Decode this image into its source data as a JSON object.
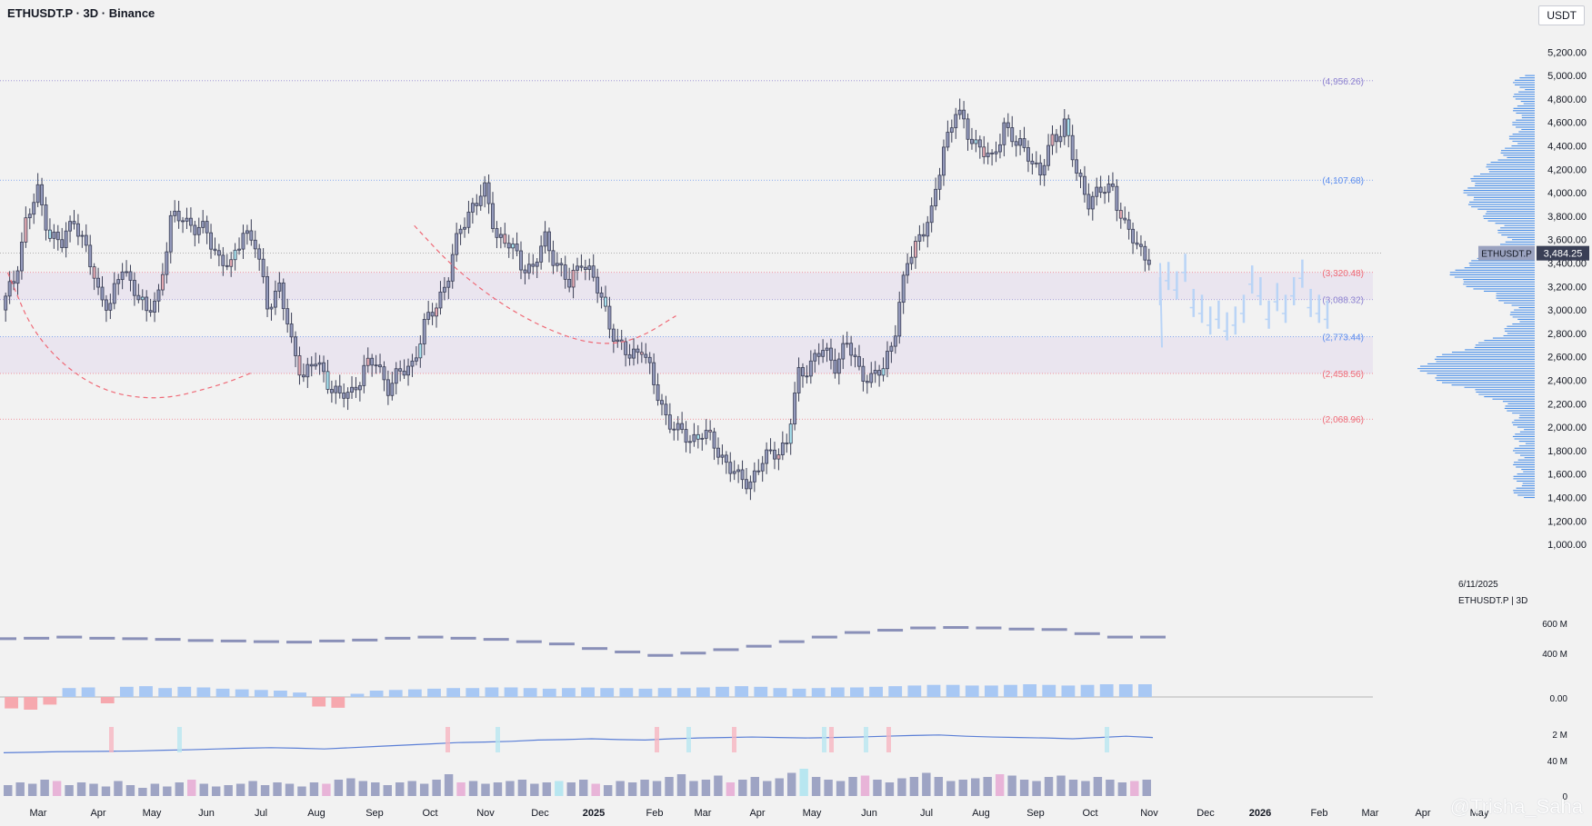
{
  "header": {
    "title": "ETHUSDT.P · 3D · Binance",
    "unit": "USDT"
  },
  "watermark": "@Trisha_Saha",
  "side_info": {
    "date": "6/11/2025",
    "symbol": "ETHUSDT.P | 3D"
  },
  "price_tag": {
    "symbol": "ETHUSDT.P",
    "value": "3,484.25",
    "price": 3484.25
  },
  "colors": {
    "candle_body": "#9399bb",
    "candle_outline": "#3b3f56",
    "bear_body": "#e4aab2",
    "bull_body": "#a9e4f0",
    "projection": "#b9d4f6",
    "profile": "#3a86e8",
    "level_blue": "#5b8def",
    "level_red": "#ef6a77",
    "zone": "#e9e3ee",
    "bg": "#f2f2f2"
  },
  "chart_data": [
    {
      "type": "candlestick",
      "title": "",
      "x_labels": [
        "Mar",
        "Apr",
        "May",
        "Jun",
        "Jul",
        "Aug",
        "Sep",
        "Oct",
        "Nov",
        "Dec",
        "2025",
        "Feb",
        "Mar",
        "Apr",
        "May",
        "Jun",
        "Jul",
        "Aug",
        "Sep",
        "Oct",
        "Nov",
        "Dec",
        "2026",
        "Feb",
        "Mar",
        "Apr",
        "May"
      ],
      "y_ticks": [
        5200,
        5000,
        4800,
        4600,
        4400,
        4200,
        4000,
        3800,
        3600,
        3400,
        3200,
        3000,
        2800,
        2600,
        2400,
        2200,
        2000,
        1800,
        1600,
        1400,
        1200,
        1000
      ],
      "ylim": [
        900,
        5350
      ],
      "levels": [
        {
          "label": "(4,956.26)",
          "value": 4956.26,
          "color": "#8b7fd0"
        },
        {
          "label": "(4,107.68)",
          "value": 4107.68,
          "color": "#5b8def"
        },
        {
          "label": "(3,320.48)",
          "value": 3320.48,
          "color": "#ef6a77"
        },
        {
          "label": "(3,088.32)",
          "value": 3088.32,
          "color": "#8b7fd0"
        },
        {
          "label": "(2,773.44)",
          "value": 2773.44,
          "color": "#5b8def"
        },
        {
          "label": "(2,458.56)",
          "value": 2458.56,
          "color": "#ef6a77"
        },
        {
          "label": "(2,068.96)",
          "value": 2068.96,
          "color": "#ef6a77"
        }
      ],
      "zones": [
        {
          "from": 3088.32,
          "to": 3320.48
        },
        {
          "from": 2458.56,
          "to": 2773.44
        }
      ],
      "close_path": [
        3000,
        3250,
        3750,
        4000,
        3650,
        3550,
        3800,
        3500,
        3150,
        3050,
        3350,
        3200,
        2950,
        3150,
        3750,
        3800,
        3700,
        3650,
        3450,
        3350,
        3700,
        3550,
        3050,
        3200,
        2700,
        2450,
        2550,
        2400,
        2250,
        2300,
        2500,
        2550,
        2350,
        2450,
        2550,
        2850,
        3050,
        3300,
        3700,
        3900,
        4000,
        3650,
        3550,
        3400,
        3350,
        3600,
        3400,
        3200,
        3450,
        3250,
        3000,
        2700,
        2600,
        2700,
        2350,
        2100,
        1950,
        1900,
        1950,
        1850,
        1700,
        1550,
        1550,
        1700,
        1800,
        1850,
        2450,
        2550,
        2650,
        2550,
        2700,
        2500,
        2400,
        2500,
        2850,
        3400,
        3650,
        3800,
        4400,
        4700,
        4500,
        4400,
        4250,
        4600,
        4400,
        4350,
        4150,
        4450,
        4600,
        4150,
        3950,
        4000,
        4050,
        3700,
        3550,
        3450
      ],
      "projection_path": [
        3150,
        3280,
        3200,
        3350,
        3050,
        3000,
        2900,
        2950,
        2850,
        2900,
        3000,
        3250,
        3150,
        2950,
        3100,
        3000,
        3150,
        3300,
        3050,
        3000,
        2950
      ],
      "curves": [
        {
          "name": "",
          "points": [
            [
              1,
              3320
            ],
            [
              8,
              2750
            ],
            [
              22,
              2330
            ],
            [
              38,
              2220
            ],
            [
              54,
              2360
            ],
            [
              62,
              2470
            ]
          ]
        },
        {
          "name": "",
          "points": [
            [
              102,
              3720
            ],
            [
              112,
              3350
            ],
            [
              126,
              2990
            ],
            [
              140,
              2760
            ],
            [
              150,
              2700
            ],
            [
              158,
              2760
            ],
            [
              167,
              2950
            ]
          ]
        }
      ]
    },
    {
      "type": "line",
      "name": "",
      "y_labels": [
        "600 M",
        "400 M"
      ],
      "values": [
        0.48,
        0.5,
        0.55,
        0.5,
        0.48,
        0.45,
        0.4,
        0.38,
        0.35,
        0.33,
        0.38,
        0.42,
        0.5,
        0.55,
        0.5,
        0.45,
        0.35,
        0.25,
        0.05,
        -0.1,
        -0.25,
        -0.15,
        0.0,
        0.15,
        0.35,
        0.55,
        0.75,
        0.85,
        0.95,
        0.97,
        0.95,
        0.9,
        0.88,
        0.7,
        0.55,
        0.55
      ]
    },
    {
      "type": "bar",
      "name": "",
      "y_labels": [
        "0.00"
      ],
      "values": [
        -0.9,
        -1.0,
        -0.6,
        0.7,
        0.75,
        -0.5,
        0.8,
        0.85,
        0.7,
        0.8,
        0.75,
        0.65,
        0.6,
        0.55,
        0.5,
        0.35,
        -0.75,
        -0.85,
        0.25,
        0.5,
        0.55,
        0.6,
        0.65,
        0.7,
        0.7,
        0.75,
        0.75,
        0.7,
        0.65,
        0.7,
        0.75,
        0.7,
        0.7,
        0.65,
        0.7,
        0.7,
        0.75,
        0.8,
        0.85,
        0.8,
        0.7,
        0.65,
        0.7,
        0.75,
        0.75,
        0.8,
        0.85,
        0.9,
        0.95,
        0.95,
        0.9,
        0.9,
        0.95,
        1.0,
        0.95,
        0.9,
        0.95,
        1.0,
        1.0,
        1.0
      ]
    },
    {
      "type": "line",
      "name": "",
      "y_labels": [
        "2 M",
        "40 M"
      ],
      "values": [
        0.2,
        0.22,
        0.24,
        0.25,
        0.26,
        0.27,
        0.3,
        0.32,
        0.35,
        0.38,
        0.4,
        0.38,
        0.35,
        0.4,
        0.45,
        0.5,
        0.55,
        0.6,
        0.62,
        0.65,
        0.7,
        0.72,
        0.75,
        0.72,
        0.7,
        0.75,
        0.78,
        0.8,
        0.82,
        0.8,
        0.78,
        0.8,
        0.82,
        0.85,
        0.88,
        0.9,
        0.85,
        0.82,
        0.8,
        0.78,
        0.75,
        0.8,
        0.85,
        0.8
      ]
    },
    {
      "type": "bar",
      "name": "",
      "y_labels": [
        "0"
      ],
      "values": [
        0.4,
        0.5,
        0.45,
        0.6,
        0.55,
        0.4,
        0.5,
        0.45,
        0.35,
        0.55,
        0.4,
        0.3,
        0.45,
        0.35,
        0.5,
        0.6,
        0.45,
        0.35,
        0.4,
        0.45,
        0.55,
        0.4,
        0.5,
        0.45,
        0.35,
        0.5,
        0.45,
        0.6,
        0.65,
        0.55,
        0.5,
        0.4,
        0.5,
        0.55,
        0.45,
        0.6,
        0.8,
        0.5,
        0.55,
        0.45,
        0.5,
        0.55,
        0.6,
        0.45,
        0.5,
        0.55,
        0.5,
        0.6,
        0.45,
        0.4,
        0.55,
        0.5,
        0.6,
        0.55,
        0.7,
        0.8,
        0.55,
        0.6,
        0.75,
        0.5,
        0.6,
        0.7,
        0.55,
        0.65,
        0.85,
        1.0,
        0.7,
        0.6,
        0.55,
        0.7,
        0.75,
        0.6,
        0.5,
        0.65,
        0.7,
        0.85,
        0.7,
        0.55,
        0.6,
        0.65,
        0.7,
        0.8,
        0.75,
        0.6,
        0.55,
        0.7,
        0.75,
        0.6,
        0.55,
        0.7,
        0.6,
        0.5,
        0.55,
        0.6
      ]
    }
  ]
}
